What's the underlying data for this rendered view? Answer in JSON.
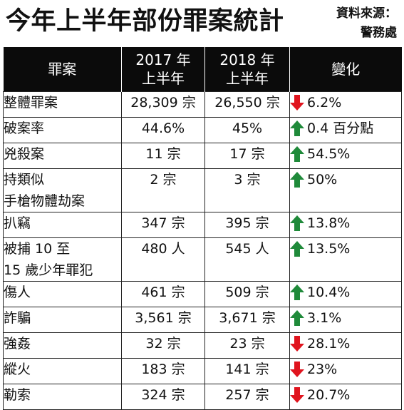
{
  "title": "今年上半年部份罪案統計",
  "source": {
    "label": "資料來源：",
    "name": "警務處"
  },
  "table": {
    "headers": [
      [
        "罪案"
      ],
      [
        "2017 年",
        "上半年"
      ],
      [
        "2018 年",
        "上半年"
      ],
      [
        "變化"
      ]
    ],
    "rows": [
      {
        "label": [
          "整體罪案"
        ],
        "y2017": "28,309 宗",
        "y2018": "26,550 宗",
        "change": "6.2%",
        "direction": "down",
        "tall": false
      },
      {
        "label": [
          "破案率"
        ],
        "y2017": "44.6%",
        "y2018": "45%",
        "change": "0.4 百分點",
        "direction": "up",
        "tall": false
      },
      {
        "label": [
          "兇殺案"
        ],
        "y2017": "11 宗",
        "y2018": "17 宗",
        "change": "54.5%",
        "direction": "up",
        "tall": false
      },
      {
        "label": [
          "持類似",
          "手槍物體劫案"
        ],
        "y2017": "2 宗",
        "y2018": "3 宗",
        "change": "50%",
        "direction": "up",
        "tall": true
      },
      {
        "label": [
          "扒竊"
        ],
        "y2017": "347 宗",
        "y2018": "395 宗",
        "change": "13.8%",
        "direction": "up",
        "tall": false
      },
      {
        "label": [
          "被捕 10 至",
          "15 歲少年罪犯"
        ],
        "y2017": "480 人",
        "y2018": "545 人",
        "change": "13.5%",
        "direction": "up",
        "tall": true
      },
      {
        "label": [
          "傷人"
        ],
        "y2017": "461 宗",
        "y2018": "509 宗",
        "change": "10.4%",
        "direction": "up",
        "tall": false
      },
      {
        "label": [
          "詐騙"
        ],
        "y2017": "3,561 宗",
        "y2018": "3,671 宗",
        "change": "3.1%",
        "direction": "up",
        "tall": false
      },
      {
        "label": [
          "強姦"
        ],
        "y2017": "32 宗",
        "y2018": "23 宗",
        "change": "28.1%",
        "direction": "down",
        "tall": false
      },
      {
        "label": [
          "縱火"
        ],
        "y2017": "183 宗",
        "y2018": "141 宗",
        "change": "23%",
        "direction": "down",
        "tall": false
      },
      {
        "label": [
          "勒索"
        ],
        "y2017": "324 宗",
        "y2018": "257 宗",
        "change": "20.7%",
        "direction": "down",
        "tall": false
      }
    ]
  },
  "colors": {
    "up_arrow": "#1f8a3a",
    "down_arrow": "#e0141e",
    "header_bg": "#0b0b0b"
  },
  "icons": {
    "up": "up-arrow-icon",
    "down": "down-arrow-icon"
  }
}
